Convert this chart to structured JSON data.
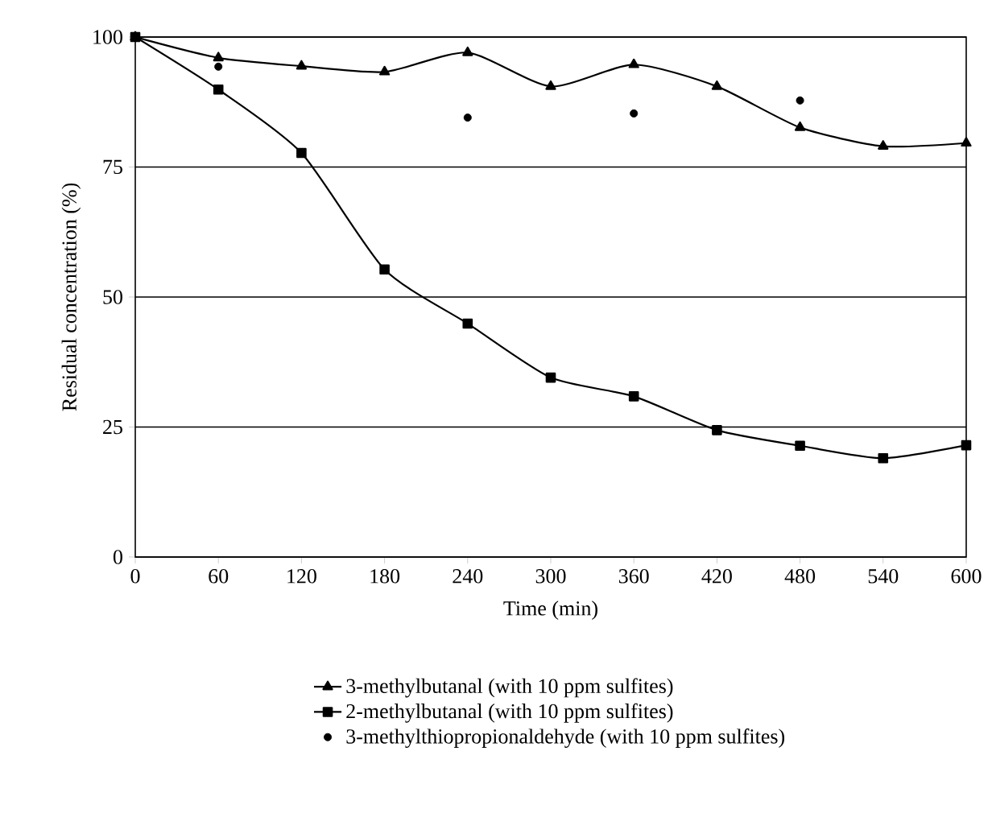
{
  "chart_data": {
    "type": "line",
    "xlabel": "Time (min)",
    "ylabel": "Residual concentration (%)",
    "x": [
      0,
      60,
      120,
      180,
      240,
      300,
      360,
      420,
      480,
      540,
      600
    ],
    "xlim": [
      0,
      600
    ],
    "xticks": [
      0,
      60,
      120,
      180,
      240,
      300,
      360,
      420,
      480,
      540,
      600
    ],
    "ylim": [
      0,
      100
    ],
    "yticks": [
      0,
      25,
      50,
      75,
      100
    ],
    "grid": "y",
    "legend": "bottom",
    "series": [
      {
        "name": "3-methylbutanal (with 10 ppm sulfites)",
        "color": "#000000",
        "marker": "triangle",
        "values": [
          100,
          96,
          94.4,
          93.3,
          97,
          90.5,
          94.7,
          90.5,
          82.6,
          79,
          79.6
        ]
      },
      {
        "name": "2-methylbutanal (with 10 ppm sulfites)",
        "color": "#000000",
        "marker": "square",
        "values": [
          100,
          89.9,
          77.7,
          55.3,
          44.9,
          34.5,
          30.9,
          24.4,
          21.4,
          19,
          21.5
        ]
      },
      {
        "name": "3-methylthiopropionaldehyde (with 10 ppm sulfites)",
        "type": "scatter",
        "color": "#000000",
        "marker": "circle",
        "x": [
          60,
          240,
          360,
          480
        ],
        "values": [
          94.3,
          84.5,
          85.3,
          87.8
        ]
      }
    ]
  }
}
